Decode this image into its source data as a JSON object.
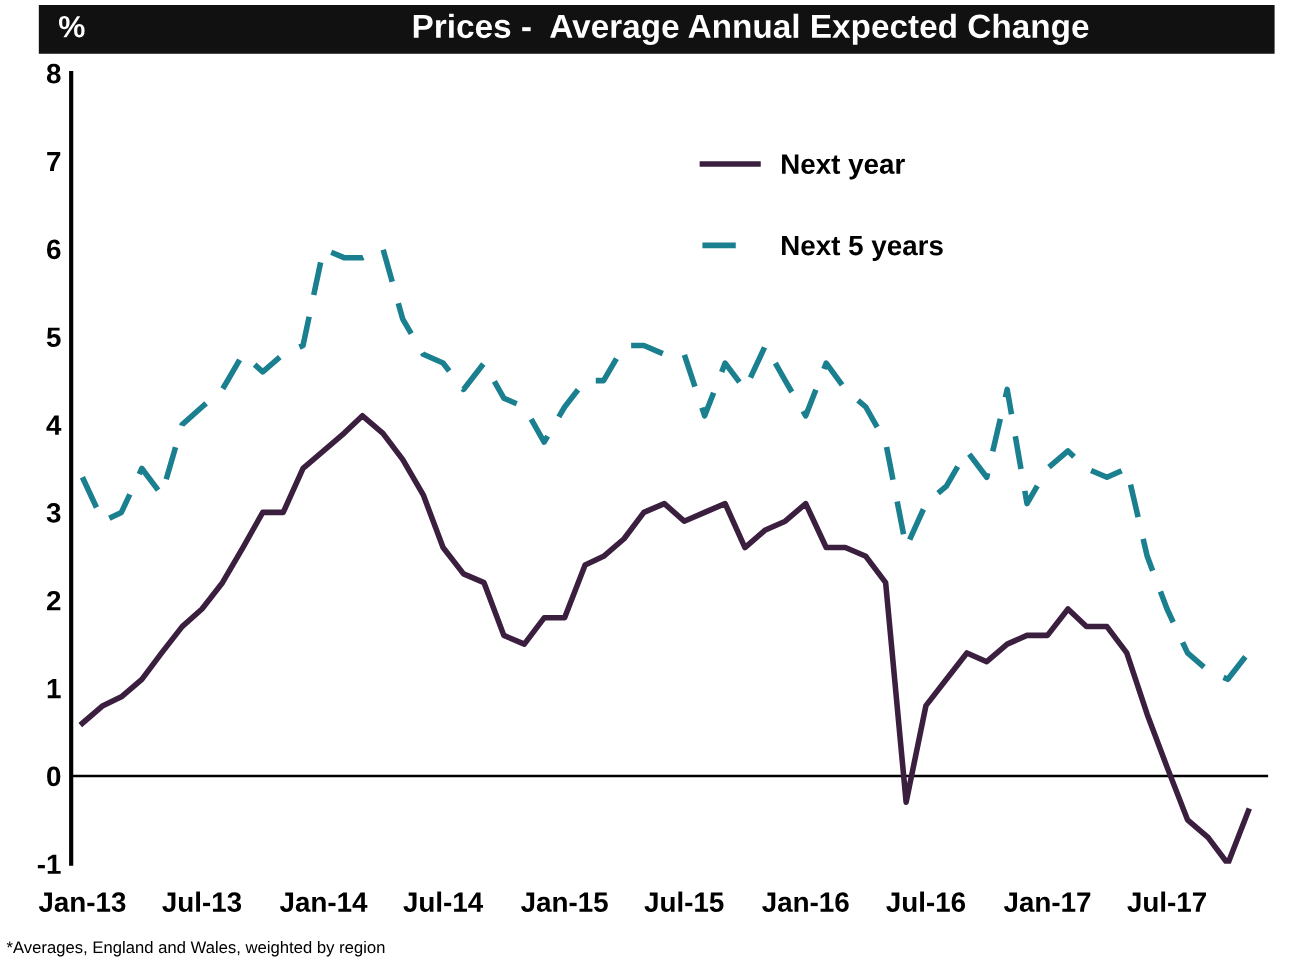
{
  "chart_data": {
    "type": "line",
    "title": "Prices -  Average Annual Expected Change",
    "ylabel": "%",
    "x": [
      "2013-01",
      "2013-02",
      "2013-03",
      "2013-04",
      "2013-05",
      "2013-06",
      "2013-07",
      "2013-08",
      "2013-09",
      "2013-10",
      "2013-11",
      "2013-12",
      "2014-01",
      "2014-02",
      "2014-03",
      "2014-04",
      "2014-05",
      "2014-06",
      "2014-07",
      "2014-08",
      "2014-09",
      "2014-10",
      "2014-11",
      "2014-12",
      "2015-01",
      "2015-02",
      "2015-03",
      "2015-04",
      "2015-05",
      "2015-06",
      "2015-07",
      "2015-08",
      "2015-09",
      "2015-10",
      "2015-11",
      "2015-12",
      "2016-01",
      "2016-02",
      "2016-03",
      "2016-04",
      "2016-05",
      "2016-06",
      "2016-07",
      "2016-08",
      "2016-09",
      "2016-10",
      "2016-11",
      "2016-12",
      "2017-01",
      "2017-02",
      "2017-03",
      "2017-04",
      "2017-05",
      "2017-06",
      "2017-07",
      "2017-08",
      "2017-09",
      "2017-10",
      "2017-11"
    ],
    "series": [
      {
        "name": "Next year",
        "color": "#3b1f3f",
        "line_style": "solid",
        "values": [
          0.6,
          0.8,
          0.9,
          1.1,
          1.4,
          1.7,
          1.9,
          2.2,
          2.6,
          3.0,
          3.0,
          3.5,
          3.7,
          3.9,
          4.1,
          3.9,
          3.6,
          3.2,
          2.6,
          2.3,
          2.2,
          1.6,
          1.5,
          1.8,
          1.8,
          2.4,
          2.5,
          2.7,
          3.0,
          3.1,
          2.9,
          3.0,
          3.1,
          2.6,
          2.8,
          2.9,
          3.1,
          2.6,
          2.6,
          2.5,
          2.2,
          -0.3,
          0.8,
          1.1,
          1.4,
          1.3,
          1.5,
          1.6,
          1.6,
          1.9,
          1.7,
          1.7,
          1.4,
          0.7,
          0.1,
          -0.5,
          -0.7,
          -1.0,
          -0.4
        ]
      },
      {
        "name": "Next 5 years",
        "color": "#1a7f8e",
        "line_style": "dashed",
        "values": [
          3.4,
          2.9,
          3.0,
          3.5,
          3.2,
          4.0,
          4.2,
          4.4,
          4.8,
          4.6,
          4.8,
          4.9,
          6.0,
          5.9,
          5.9,
          6.0,
          5.2,
          4.8,
          4.7,
          4.4,
          4.7,
          4.3,
          4.2,
          3.8,
          4.2,
          4.5,
          4.5,
          4.9,
          4.9,
          4.8,
          4.8,
          4.1,
          4.7,
          4.4,
          4.9,
          4.5,
          4.1,
          4.7,
          4.4,
          4.2,
          3.8,
          2.6,
          3.1,
          3.3,
          3.7,
          3.4,
          4.4,
          3.1,
          3.5,
          3.7,
          3.5,
          3.4,
          3.5,
          2.5,
          1.9,
          1.4,
          1.2,
          1.1,
          1.4
        ]
      }
    ],
    "xlim": [
      "2012-12-15",
      "2017-12-01"
    ],
    "xticks": [
      {
        "value": "2013-01",
        "label": "Jan-13"
      },
      {
        "value": "2013-07",
        "label": "Jul-13"
      },
      {
        "value": "2014-01",
        "label": "Jan-14"
      },
      {
        "value": "2014-07",
        "label": "Jul-14"
      },
      {
        "value": "2015-01",
        "label": "Jan-15"
      },
      {
        "value": "2015-07",
        "label": "Jul-15"
      },
      {
        "value": "2016-01",
        "label": "Jan-16"
      },
      {
        "value": "2016-07",
        "label": "Jul-16"
      },
      {
        "value": "2017-01",
        "label": "Jan-17"
      },
      {
        "value": "2017-07",
        "label": "Jul-17"
      }
    ],
    "ylim": [
      -1,
      8
    ],
    "yticks": [
      -1,
      0,
      1,
      2,
      3,
      4,
      5,
      6,
      7,
      8
    ],
    "ref_lines": [
      {
        "axis": "y",
        "value": 0,
        "label": null,
        "color": "#000000"
      }
    ],
    "grid": false,
    "legend": "top right",
    "annotations": [
      "*Averages, England and Wales, weighted by region"
    ]
  }
}
